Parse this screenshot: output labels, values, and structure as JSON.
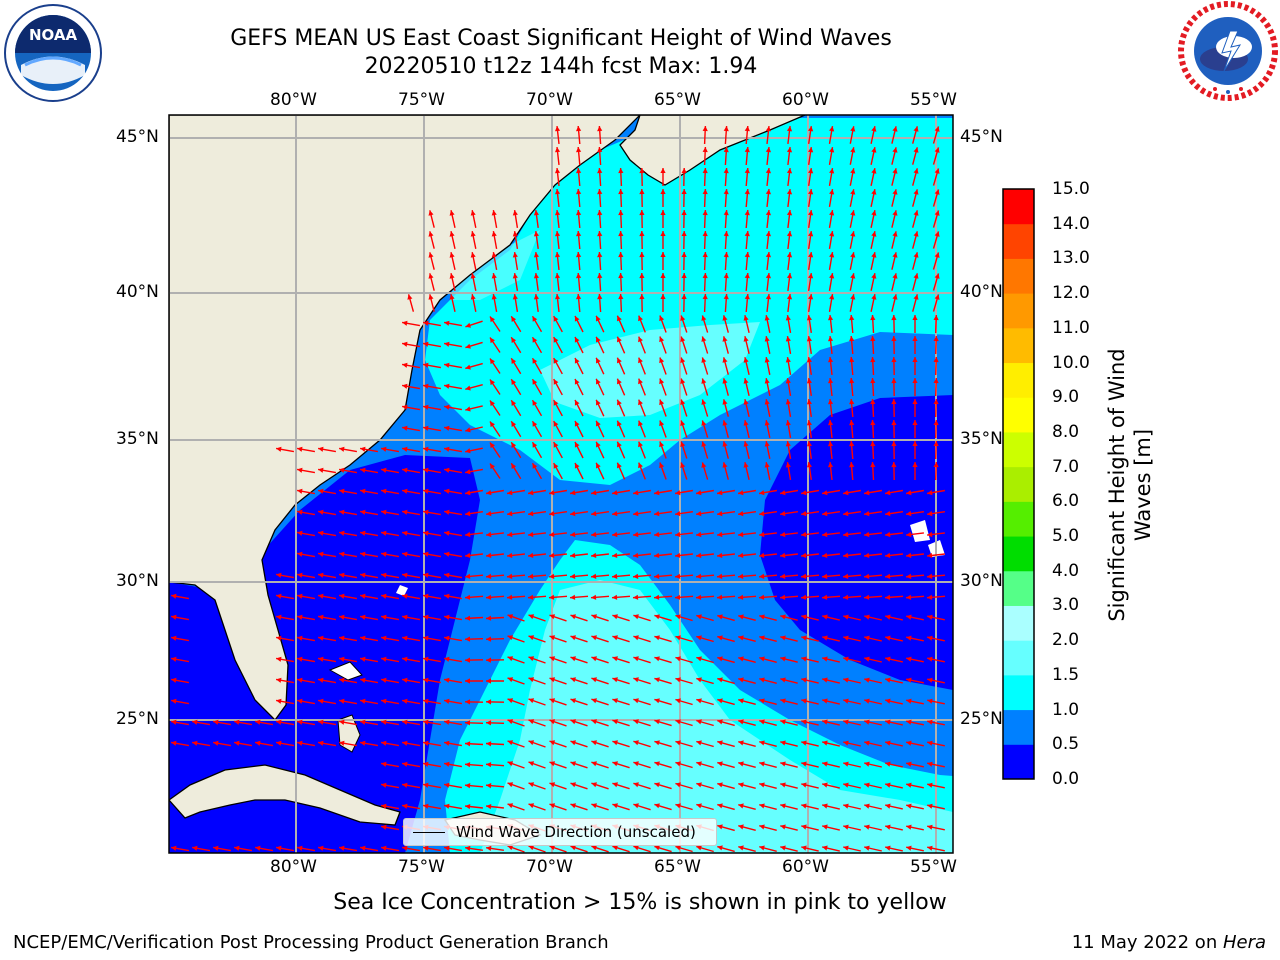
{
  "title": {
    "line1": "GEFS MEAN US East Coast Significant Height of Wind Waves",
    "line2": "20220510 t12z 144h fcst   Max: 1.94"
  },
  "map": {
    "lon_labels": [
      "80°W",
      "75°W",
      "70°W",
      "65°W",
      "60°W",
      "55°W"
    ],
    "lat_labels": [
      "45°N",
      "40°N",
      "35°N",
      "30°N",
      "25°N"
    ],
    "legend_label": "Wind Wave Direction (unscaled)",
    "land_color": "#eeecdc",
    "arrow_color": "#ff0000",
    "icon": "wind-wave-direction-arrow-icon"
  },
  "colorbar": {
    "title": "Significant Height of Wind Waves [m]",
    "ticks": [
      "0.0",
      "0.5",
      "1.0",
      "1.5",
      "2.0",
      "3.0",
      "4.0",
      "5.0",
      "6.0",
      "7.0",
      "8.0",
      "9.0",
      "10.0",
      "11.0",
      "12.0",
      "13.0",
      "14.0",
      "15.0"
    ],
    "colors": [
      "#0000ff",
      "#0080ff",
      "#00ffff",
      "#66ffff",
      "#aaffff",
      "#55ff88",
      "#00dd00",
      "#55ee00",
      "#aaee00",
      "#ccff00",
      "#ffff00",
      "#ffee00",
      "#ffbb00",
      "#ff9900",
      "#ff7700",
      "#ff4400",
      "#ff0000"
    ]
  },
  "footnote": "Sea Ice Concentration > 15% is shown in pink to yellow",
  "credit": {
    "left": "NCEP/EMC/Verification Post Processing Product Generation Branch",
    "right_prefix": "11 May 2022 on ",
    "right_italic": "Hera"
  },
  "logos": {
    "noaa_text": "NOAA",
    "noaa_icon": "noaa-logo-icon",
    "nws_icon": "national-weather-service-logo-icon"
  }
}
